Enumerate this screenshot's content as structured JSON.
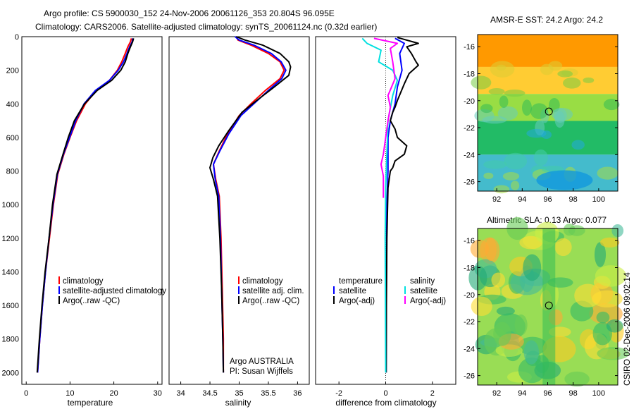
{
  "header": {
    "line1": "Argo profile: CS 5900030_152 24-Nov-2006 20061126_353 20.804S 96.095E",
    "line2": "Climatology: CARS2006. Satellite-adjusted climatology: synTS_20061124.nc (0.32d earlier)"
  },
  "depth_ticks": [
    "0",
    "200",
    "400",
    "600",
    "800",
    "1000",
    "1200",
    "1400",
    "1600",
    "1800",
    "2000"
  ],
  "credit": "CSIRO 02-Dec-2006 09:02:14",
  "colors": {
    "red": "#ff0000",
    "blue": "#0000ff",
    "black": "#000000",
    "cyan": "#00e0e0",
    "magenta": "#ff00ff"
  },
  "chart_data": [
    {
      "id": "temperature",
      "type": "line",
      "xlabel": "temperature",
      "xlim": [
        -1,
        31
      ],
      "ylim": [
        2070,
        0
      ],
      "x_ticks": [
        "0",
        "10",
        "20",
        "30"
      ],
      "legend": {
        "position": "middle-right",
        "items": [
          "climatology",
          "satellite-adjusted climatology",
          "Argo(..raw -QC)"
        ]
      },
      "series": [
        {
          "name": "climatology",
          "color": "red",
          "points": [
            [
              24.0,
              10
            ],
            [
              23.8,
              30
            ],
            [
              23.2,
              60
            ],
            [
              22.6,
              100
            ],
            [
              21.8,
              150
            ],
            [
              20.8,
              200
            ],
            [
              19.0,
              260
            ],
            [
              16.0,
              320
            ],
            [
              13.5,
              400
            ],
            [
              11.5,
              500
            ],
            [
              10.0,
              600
            ],
            [
              8.6,
              700
            ],
            [
              7.2,
              820
            ],
            [
              6.2,
              1000
            ],
            [
              5.3,
              1200
            ],
            [
              4.4,
              1400
            ],
            [
              3.7,
              1600
            ],
            [
              3.1,
              1800
            ],
            [
              2.6,
              2000
            ]
          ]
        },
        {
          "name": "satellite-adjusted climatology",
          "color": "blue",
          "points": [
            [
              24.3,
              10
            ],
            [
              24.2,
              30
            ],
            [
              23.6,
              60
            ],
            [
              23.0,
              100
            ],
            [
              22.2,
              150
            ],
            [
              21.0,
              200
            ],
            [
              19.0,
              260
            ],
            [
              15.8,
              320
            ],
            [
              13.2,
              400
            ],
            [
              11.3,
              500
            ],
            [
              9.9,
              600
            ],
            [
              8.5,
              700
            ],
            [
              7.1,
              820
            ],
            [
              6.1,
              1000
            ],
            [
              5.2,
              1200
            ],
            [
              4.4,
              1400
            ],
            [
              3.7,
              1600
            ],
            [
              3.1,
              1800
            ],
            [
              2.6,
              2000
            ]
          ]
        },
        {
          "name": "Argo(..raw -QC)",
          "color": "black",
          "points": [
            [
              24.5,
              10
            ],
            [
              24.3,
              30
            ],
            [
              23.8,
              60
            ],
            [
              23.2,
              100
            ],
            [
              22.6,
              150
            ],
            [
              21.6,
              200
            ],
            [
              19.5,
              260
            ],
            [
              16.2,
              320
            ],
            [
              13.3,
              400
            ],
            [
              11.0,
              500
            ],
            [
              9.6,
              600
            ],
            [
              8.4,
              700
            ],
            [
              7.0,
              820
            ],
            [
              6.0,
              1000
            ],
            [
              5.2,
              1200
            ],
            [
              4.3,
              1400
            ],
            [
              3.6,
              1600
            ],
            [
              3.0,
              1800
            ],
            [
              2.5,
              2000
            ]
          ]
        }
      ]
    },
    {
      "id": "salinity",
      "type": "line",
      "xlabel": "salinity",
      "xlim": [
        33.8,
        36.2
      ],
      "ylim": [
        2070,
        0
      ],
      "x_ticks": [
        "34",
        "34.5",
        "35",
        "35.5",
        "36"
      ],
      "legend": {
        "position": "middle-right",
        "items": [
          "climatology",
          "satellite adj. clim.",
          "Argo(..raw -QC)"
        ]
      },
      "annotation": [
        "Argo AUSTRALIA",
        "PI: Susan Wijffels"
      ],
      "series": [
        {
          "name": "climatology",
          "color": "red",
          "points": [
            [
              34.95,
              0
            ],
            [
              34.98,
              20
            ],
            [
              35.2,
              50
            ],
            [
              35.5,
              100
            ],
            [
              35.7,
              150
            ],
            [
              35.77,
              200
            ],
            [
              35.7,
              250
            ],
            [
              35.45,
              320
            ],
            [
              35.2,
              400
            ],
            [
              35.0,
              470
            ],
            [
              34.8,
              580
            ],
            [
              34.66,
              680
            ],
            [
              34.56,
              760
            ],
            [
              34.6,
              850
            ],
            [
              34.66,
              950
            ],
            [
              34.69,
              1200
            ],
            [
              34.71,
              1500
            ],
            [
              34.73,
              1800
            ],
            [
              34.73,
              2000
            ]
          ]
        },
        {
          "name": "satellite adj. clim.",
          "color": "blue",
          "points": [
            [
              34.93,
              0
            ],
            [
              35.0,
              20
            ],
            [
              35.25,
              50
            ],
            [
              35.55,
              100
            ],
            [
              35.72,
              150
            ],
            [
              35.8,
              200
            ],
            [
              35.73,
              250
            ],
            [
              35.5,
              320
            ],
            [
              35.25,
              400
            ],
            [
              35.03,
              470
            ],
            [
              34.82,
              580
            ],
            [
              34.67,
              680
            ],
            [
              34.56,
              760
            ],
            [
              34.59,
              850
            ],
            [
              34.65,
              950
            ],
            [
              34.68,
              1200
            ],
            [
              34.7,
              1500
            ],
            [
              34.72,
              1800
            ],
            [
              34.73,
              2000
            ]
          ]
        },
        {
          "name": "Argo(..raw -QC)",
          "color": "black",
          "points": [
            [
              34.95,
              0
            ],
            [
              35.1,
              20
            ],
            [
              35.4,
              50
            ],
            [
              35.7,
              100
            ],
            [
              35.85,
              150
            ],
            [
              35.88,
              180
            ],
            [
              35.85,
              230
            ],
            [
              35.6,
              300
            ],
            [
              35.3,
              380
            ],
            [
              35.05,
              450
            ],
            [
              34.82,
              560
            ],
            [
              34.65,
              650
            ],
            [
              34.55,
              720
            ],
            [
              34.5,
              780
            ],
            [
              34.56,
              850
            ],
            [
              34.63,
              950
            ],
            [
              34.67,
              1200
            ],
            [
              34.7,
              1500
            ],
            [
              34.72,
              1800
            ],
            [
              34.73,
              2000
            ]
          ]
        }
      ]
    },
    {
      "id": "difference",
      "type": "line",
      "xlabel": "difference from climatology",
      "xlim": [
        -3,
        3
      ],
      "ylim": [
        2070,
        0
      ],
      "x_ticks": [
        "-2",
        "0",
        "2"
      ],
      "legend": {
        "position": "middle",
        "groups": [
          {
            "heading": "temperature",
            "items": [
              "satellite",
              "Argo(-adj)"
            ]
          },
          {
            "heading": "salinity",
            "items": [
              "satellite",
              "Argo(-adj)"
            ]
          }
        ]
      },
      "series": [
        {
          "name": "temperature satellite",
          "color": "blue",
          "points": [
            [
              0.4,
              10
            ],
            [
              0.8,
              40
            ],
            [
              0.6,
              100
            ],
            [
              0.7,
              200
            ],
            [
              0.5,
              300
            ],
            [
              0.4,
              400
            ],
            [
              0.2,
              500
            ],
            [
              0.1,
              600
            ],
            [
              0.1,
              800
            ],
            [
              0.05,
              1000
            ],
            [
              0.03,
              1500
            ],
            [
              0.02,
              2000
            ]
          ]
        },
        {
          "name": "temperature Argo(-adj)",
          "color": "black",
          "points": [
            [
              0.5,
              5
            ],
            [
              1.4,
              40
            ],
            [
              0.9,
              60
            ],
            [
              1.1,
              100
            ],
            [
              1.3,
              150
            ],
            [
              1.4,
              170
            ],
            [
              1.0,
              220
            ],
            [
              0.8,
              280
            ],
            [
              0.5,
              380
            ],
            [
              0.4,
              420
            ],
            [
              0.3,
              450
            ],
            [
              0.2,
              500
            ],
            [
              0.4,
              550
            ],
            [
              0.5,
              600
            ],
            [
              0.9,
              650
            ],
            [
              0.8,
              700
            ],
            [
              0.4,
              740
            ],
            [
              0.3,
              780
            ],
            [
              0.2,
              800
            ],
            [
              0.1,
              900
            ],
            [
              0.05,
              1200
            ],
            [
              0.03,
              1600
            ],
            [
              0.02,
              2000
            ]
          ]
        },
        {
          "name": "salinity satellite",
          "color": "cyan",
          "points": [
            [
              -1.0,
              10
            ],
            [
              -0.8,
              40
            ],
            [
              -0.2,
              80
            ],
            [
              -0.3,
              150
            ],
            [
              0.3,
              200
            ],
            [
              0.5,
              260
            ],
            [
              0.3,
              350
            ],
            [
              0.1,
              500
            ],
            [
              0.05,
              700
            ],
            [
              0.0,
              900
            ],
            [
              -0.02,
              1200
            ],
            [
              0.0,
              2000
            ]
          ]
        },
        {
          "name": "salinity Argo(-adj)",
          "color": "magenta",
          "points": [
            [
              -0.5,
              10
            ],
            [
              0.5,
              40
            ],
            [
              0.2,
              70
            ],
            [
              0.3,
              150
            ],
            [
              0.4,
              250
            ],
            [
              0.1,
              350
            ],
            [
              0.2,
              420
            ],
            [
              0.1,
              500
            ],
            [
              -0.1,
              700
            ],
            [
              -0.2,
              760
            ],
            [
              -0.1,
              830
            ],
            [
              -0.1,
              960
            ]
          ]
        }
      ]
    },
    {
      "id": "sst_map",
      "type": "heatmap",
      "title": "AMSR-E SST: 24.2  Argo: 24.2",
      "xlim": [
        90.5,
        101.5
      ],
      "ylim": [
        -26.7,
        -15.1
      ],
      "x_ticks": [
        "92",
        "94",
        "96",
        "98",
        "100"
      ],
      "y_ticks": [
        "-16",
        "-18",
        "-20",
        "-22",
        "-24",
        "-26"
      ],
      "marker": {
        "lon": 96.095,
        "lat": -20.804
      },
      "zones": [
        {
          "lat_from": -15.1,
          "lat_to": -17.5,
          "color": "#ff9900"
        },
        {
          "lat_from": -17.5,
          "lat_to": -19.5,
          "color": "#ffcc33"
        },
        {
          "lat_from": -19.5,
          "lat_to": -21.5,
          "color": "#99dd44"
        },
        {
          "lat_from": -21.5,
          "lat_to": -24.0,
          "color": "#22bb66"
        },
        {
          "lat_from": -24.0,
          "lat_to": -26.7,
          "color": "#44bbcc"
        }
      ]
    },
    {
      "id": "sla_map",
      "type": "heatmap",
      "title": "Altimetric SLA: 0.13  Argo: 0.077",
      "xlim": [
        90.5,
        101.5
      ],
      "ylim": [
        -26.7,
        -15.1
      ],
      "x_ticks": [
        "92",
        "94",
        "96",
        "98",
        "100"
      ],
      "y_ticks": [
        "-16",
        "-18",
        "-20",
        "-22",
        "-24",
        "-26"
      ],
      "marker": {
        "lon": 96.095,
        "lat": -20.804
      },
      "base_color": "#99dd55"
    }
  ]
}
